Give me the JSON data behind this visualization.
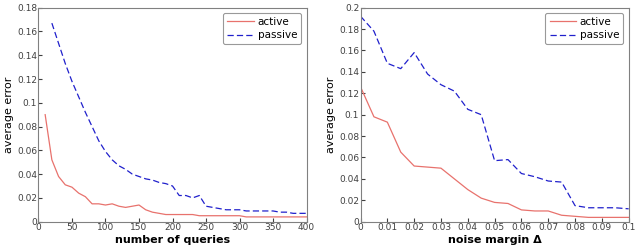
{
  "plot1": {
    "xlabel": "number of queries",
    "ylabel": "average error",
    "xlim": [
      0,
      400
    ],
    "ylim": [
      0,
      0.18
    ],
    "yticks": [
      0,
      0.02,
      0.04,
      0.06,
      0.08,
      0.1,
      0.12,
      0.14,
      0.16,
      0.18
    ],
    "xticks": [
      0,
      50,
      100,
      150,
      200,
      250,
      300,
      350,
      400
    ],
    "active_x": [
      10,
      20,
      30,
      40,
      50,
      60,
      70,
      80,
      90,
      100,
      110,
      120,
      130,
      140,
      150,
      160,
      170,
      180,
      190,
      200,
      210,
      220,
      230,
      240,
      250,
      260,
      270,
      280,
      290,
      300,
      310,
      320,
      330,
      340,
      350,
      360,
      370,
      380,
      390,
      400
    ],
    "active_y": [
      0.09,
      0.052,
      0.038,
      0.031,
      0.029,
      0.024,
      0.021,
      0.015,
      0.015,
      0.014,
      0.015,
      0.013,
      0.012,
      0.013,
      0.014,
      0.01,
      0.008,
      0.007,
      0.006,
      0.006,
      0.006,
      0.006,
      0.006,
      0.005,
      0.005,
      0.005,
      0.005,
      0.005,
      0.005,
      0.005,
      0.004,
      0.004,
      0.004,
      0.004,
      0.004,
      0.004,
      0.004,
      0.004,
      0.004,
      0.004
    ],
    "passive_x": [
      20,
      30,
      40,
      50,
      60,
      70,
      80,
      90,
      100,
      110,
      120,
      130,
      140,
      150,
      160,
      170,
      180,
      190,
      200,
      210,
      220,
      230,
      240,
      250,
      260,
      270,
      280,
      290,
      300,
      310,
      320,
      330,
      340,
      350,
      360,
      370,
      380,
      390,
      400
    ],
    "passive_y": [
      0.167,
      0.15,
      0.133,
      0.118,
      0.105,
      0.092,
      0.08,
      0.068,
      0.059,
      0.052,
      0.047,
      0.044,
      0.04,
      0.038,
      0.036,
      0.035,
      0.033,
      0.032,
      0.03,
      0.022,
      0.022,
      0.02,
      0.022,
      0.013,
      0.012,
      0.011,
      0.01,
      0.01,
      0.01,
      0.009,
      0.009,
      0.009,
      0.009,
      0.009,
      0.008,
      0.008,
      0.007,
      0.007,
      0.007
    ],
    "active_color": "#E8726D",
    "passive_color": "#2020CC",
    "legend_loc": "upper right"
  },
  "plot2": {
    "xlabel": "noise margin Δ",
    "ylabel": "average error",
    "xlim": [
      0,
      0.1
    ],
    "ylim": [
      0,
      0.2
    ],
    "yticks": [
      0,
      0.02,
      0.04,
      0.06,
      0.08,
      0.1,
      0.12,
      0.14,
      0.16,
      0.18,
      0.2
    ],
    "xticks": [
      0,
      0.01,
      0.02,
      0.03,
      0.04,
      0.05,
      0.06,
      0.07,
      0.08,
      0.09,
      0.1
    ],
    "active_x": [
      0.0,
      0.005,
      0.01,
      0.015,
      0.02,
      0.025,
      0.03,
      0.035,
      0.04,
      0.045,
      0.05,
      0.055,
      0.06,
      0.065,
      0.07,
      0.075,
      0.08,
      0.085,
      0.09,
      0.095,
      0.1
    ],
    "active_y": [
      0.126,
      0.098,
      0.093,
      0.065,
      0.052,
      0.051,
      0.05,
      0.04,
      0.03,
      0.022,
      0.018,
      0.017,
      0.011,
      0.01,
      0.01,
      0.006,
      0.005,
      0.004,
      0.004,
      0.004,
      0.004
    ],
    "passive_x": [
      0.0,
      0.005,
      0.01,
      0.015,
      0.02,
      0.025,
      0.03,
      0.035,
      0.04,
      0.045,
      0.05,
      0.055,
      0.06,
      0.065,
      0.07,
      0.075,
      0.08,
      0.085,
      0.09,
      0.095,
      0.1
    ],
    "passive_y": [
      0.192,
      0.178,
      0.148,
      0.143,
      0.158,
      0.138,
      0.128,
      0.122,
      0.105,
      0.1,
      0.057,
      0.058,
      0.045,
      0.042,
      0.038,
      0.037,
      0.015,
      0.013,
      0.013,
      0.013,
      0.012
    ],
    "active_color": "#E8726D",
    "passive_color": "#2020CC",
    "legend_loc": "upper right"
  }
}
